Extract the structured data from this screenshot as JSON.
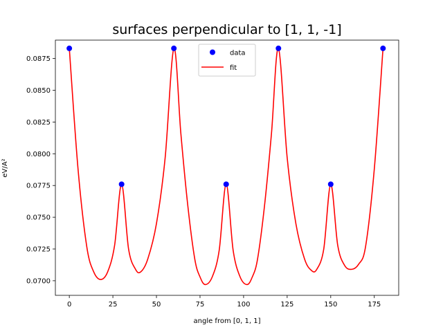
{
  "chart_data": {
    "type": "line",
    "title": "surfaces perpendicular to [1, 1, -1]",
    "xlabel": "angle from [0, 1, 1]",
    "ylabel": "eV/A²",
    "xlim": [
      -8,
      189
    ],
    "ylim": [
      0.06885,
      0.08895
    ],
    "xticks": [
      0,
      25,
      50,
      75,
      100,
      125,
      150,
      175
    ],
    "xtick_labels": [
      "0",
      "25",
      "50",
      "75",
      "100",
      "125",
      "150",
      "175"
    ],
    "yticks": [
      0.07,
      0.0725,
      0.075,
      0.0775,
      0.08,
      0.0825,
      0.085,
      0.0875
    ],
    "ytick_labels": [
      "0.0700",
      "0.0725",
      "0.0750",
      "0.0775",
      "0.0800",
      "0.0825",
      "0.0850",
      "0.0875"
    ],
    "grid": false,
    "legend": {
      "placement": "top-center",
      "entries": [
        "data",
        "fit"
      ]
    },
    "series": [
      {
        "name": "data",
        "kind": "scatter",
        "color": "#0000ff",
        "x": [
          0,
          30,
          60,
          90,
          120,
          150,
          180
        ],
        "y": [
          0.0883,
          0.0776,
          0.0883,
          0.0776,
          0.0883,
          0.0776,
          0.0883
        ]
      },
      {
        "name": "fit",
        "kind": "line",
        "color": "#ff0000",
        "x": [
          0,
          5,
          10,
          14,
          18,
          22,
          26,
          30,
          34,
          38,
          41,
          45,
          50,
          55,
          60,
          64,
          68,
          72,
          75,
          78,
          82,
          86,
          90,
          94,
          98,
          102,
          105,
          108,
          112,
          116,
          120,
          125,
          130,
          135,
          139,
          142,
          146,
          150,
          154,
          158,
          162,
          166,
          170,
          175,
          180
        ],
        "y": [
          0.0883,
          0.0788,
          0.0727,
          0.0707,
          0.0701,
          0.0707,
          0.0728,
          0.0776,
          0.0725,
          0.0709,
          0.0707,
          0.0717,
          0.0745,
          0.0797,
          0.0883,
          0.0816,
          0.0759,
          0.0717,
          0.0703,
          0.0697,
          0.0703,
          0.0724,
          0.0776,
          0.0724,
          0.0703,
          0.0697,
          0.0703,
          0.0717,
          0.0759,
          0.0816,
          0.0883,
          0.0797,
          0.0745,
          0.0717,
          0.0708,
          0.0709,
          0.0725,
          0.0776,
          0.0728,
          0.0712,
          0.0709,
          0.0713,
          0.0727,
          0.0788,
          0.0883
        ]
      }
    ]
  }
}
